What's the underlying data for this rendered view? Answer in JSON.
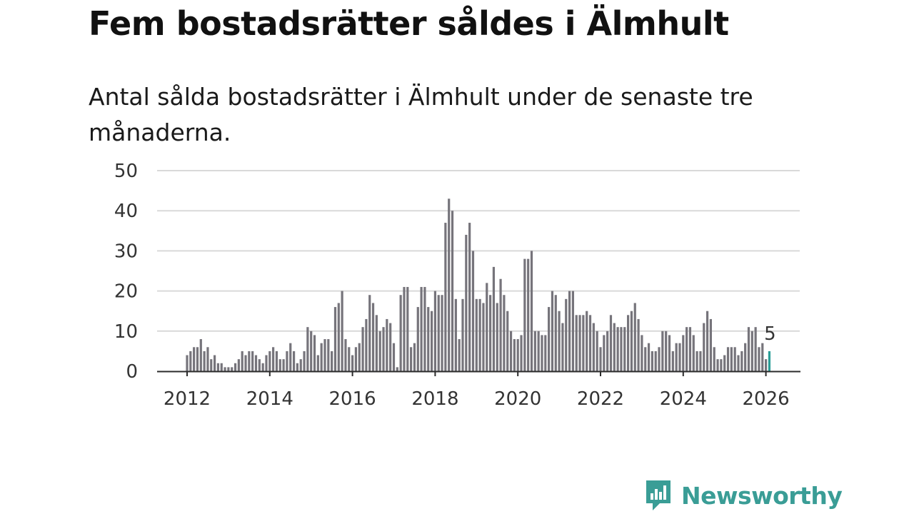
{
  "brand": {
    "name": "Newsworthy",
    "color": "#3a9d96",
    "icon": "newsworthy-logo-icon"
  },
  "chart_data": {
    "type": "bar",
    "title": "Fem bostadsrätter såldes i Älmhult",
    "subtitle": "Antal sålda bostadsrätter i Älmhult under de senaste tre månaderna.",
    "xlabel": "",
    "ylabel": "",
    "ylim": [
      0,
      50
    ],
    "yticks": [
      0,
      10,
      20,
      30,
      40,
      50
    ],
    "xticks": [
      "2012",
      "2014",
      "2016",
      "2018",
      "2020",
      "2022",
      "2024",
      "2026"
    ],
    "grid": true,
    "start": "2012-01",
    "interval": "month",
    "bar_color": "#76747b",
    "highlight_color": "#2a9d96",
    "highlight_index": 169,
    "annotation": {
      "label": "5",
      "index": 169
    },
    "values": [
      4,
      5,
      6,
      6,
      8,
      5,
      6,
      3,
      4,
      2,
      2,
      1,
      1,
      1,
      2,
      3,
      5,
      4,
      5,
      5,
      4,
      3,
      2,
      4,
      5,
      6,
      5,
      3,
      3,
      5,
      7,
      5,
      2,
      3,
      5,
      11,
      10,
      9,
      4,
      7,
      8,
      8,
      5,
      16,
      17,
      20,
      8,
      6,
      4,
      6,
      7,
      11,
      13,
      19,
      17,
      14,
      10,
      11,
      13,
      12,
      7,
      1,
      19,
      21,
      21,
      6,
      7,
      16,
      21,
      21,
      16,
      15,
      20,
      19,
      19,
      37,
      43,
      40,
      18,
      8,
      18,
      34,
      37,
      30,
      18,
      18,
      17,
      22,
      19,
      26,
      17,
      23,
      19,
      15,
      10,
      8,
      8,
      9,
      28,
      28,
      30,
      10,
      10,
      9,
      9,
      16,
      20,
      19,
      15,
      12,
      18,
      20,
      20,
      14,
      14,
      14,
      15,
      14,
      12,
      10,
      6,
      9,
      10,
      14,
      12,
      11,
      11,
      11,
      14,
      15,
      17,
      13,
      9,
      6,
      7,
      5,
      5,
      6,
      10,
      10,
      9,
      5,
      7,
      7,
      9,
      11,
      11,
      9,
      5,
      5,
      12,
      15,
      13,
      6,
      3,
      3,
      4,
      6,
      6,
      6,
      4,
      5,
      7,
      11,
      10,
      11,
      6,
      7,
      3,
      5
    ]
  }
}
